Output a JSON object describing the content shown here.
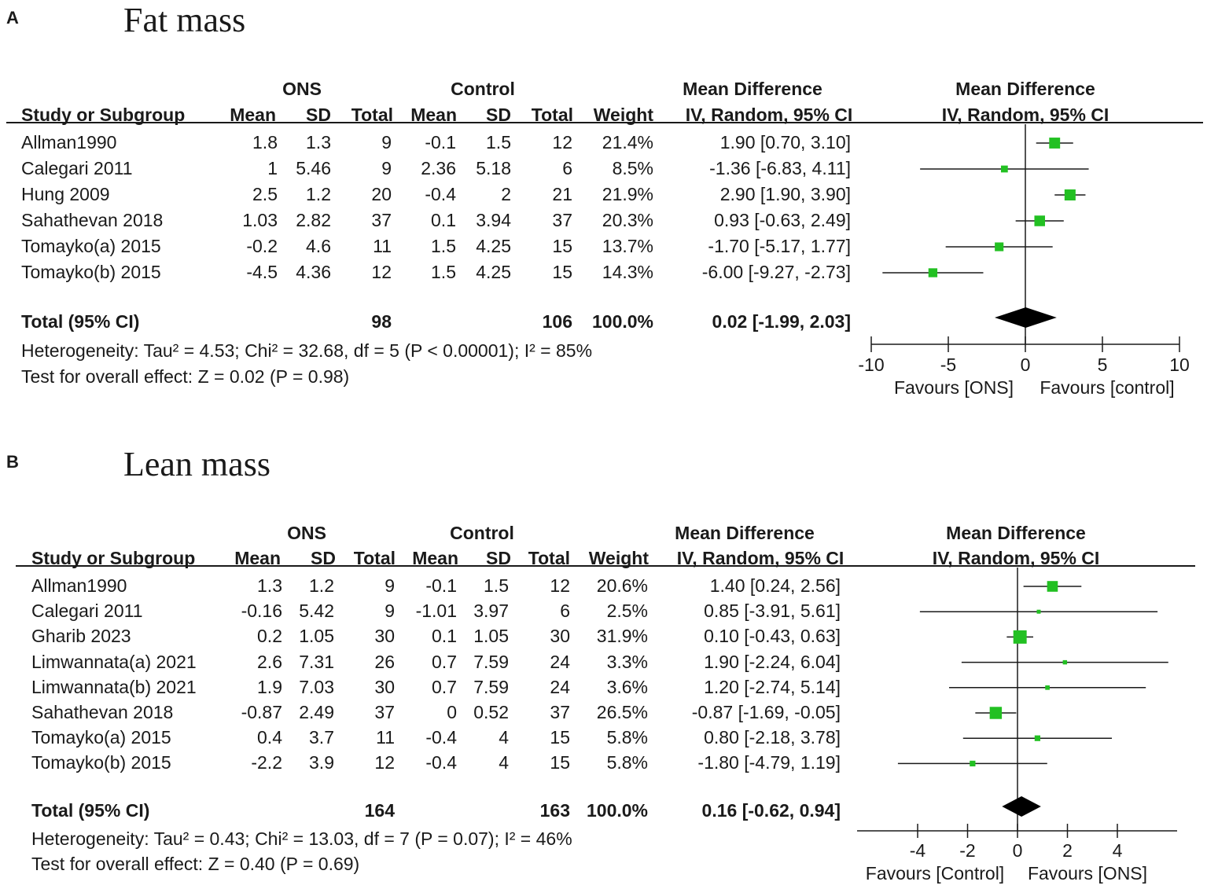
{
  "panels": [
    {
      "letter": "A",
      "title": "Fat mass",
      "group_exp": "ONS",
      "group_ctl": "Control",
      "md_header": "Mean Difference",
      "md_sub": "IV, Random, 95% CI",
      "columns": [
        "Study or Subgroup",
        "Mean",
        "SD",
        "Total",
        "Mean",
        "SD",
        "Total",
        "Weight",
        "IV, Random, 95% CI"
      ],
      "rows": [
        {
          "study": "Allman1990",
          "m1": "1.8",
          "sd1": "1.3",
          "n1": "9",
          "m2": "-0.1",
          "sd2": "1.5",
          "n2": "12",
          "weight": "21.4%",
          "ci": "1.90 [0.70, 3.10]"
        },
        {
          "study": "Calegari 2011",
          "m1": "1",
          "sd1": "5.46",
          "n1": "9",
          "m2": "2.36",
          "sd2": "5.18",
          "n2": "6",
          "weight": "8.5%",
          "ci": "-1.36 [-6.83, 4.11]"
        },
        {
          "study": "Hung 2009",
          "m1": "2.5",
          "sd1": "1.2",
          "n1": "20",
          "m2": "-0.4",
          "sd2": "2",
          "n2": "21",
          "weight": "21.9%",
          "ci": "2.90 [1.90, 3.90]"
        },
        {
          "study": "Sahathevan 2018",
          "m1": "1.03",
          "sd1": "2.82",
          "n1": "37",
          "m2": "0.1",
          "sd2": "3.94",
          "n2": "37",
          "weight": "20.3%",
          "ci": "0.93 [-0.63, 2.49]"
        },
        {
          "study": "Tomayko(a) 2015",
          "m1": "-0.2",
          "sd1": "4.6",
          "n1": "11",
          "m2": "1.5",
          "sd2": "4.25",
          "n2": "15",
          "weight": "13.7%",
          "ci": "-1.70 [-5.17, 1.77]"
        },
        {
          "study": "Tomayko(b) 2015",
          "m1": "-4.5",
          "sd1": "4.36",
          "n1": "12",
          "m2": "1.5",
          "sd2": "4.25",
          "n2": "15",
          "weight": "14.3%",
          "ci": "-6.00 [-9.27, -2.73]"
        }
      ],
      "total": {
        "label": "Total (95% CI)",
        "n1": "98",
        "n2": "106",
        "weight": "100.0%",
        "ci": "0.02 [-1.99, 2.03]"
      },
      "heterogeneity": "Heterogeneity: Tau² = 4.53; Chi² = 32.68, df = 5 (P < 0.00001); I² = 85%",
      "overall": "Test for overall effect: Z = 0.02 (P = 0.98)",
      "favours_left": "Favours [ONS]",
      "favours_right": "Favours [control]"
    },
    {
      "letter": "B",
      "title": "Lean mass",
      "group_exp": "ONS",
      "group_ctl": "Control",
      "md_header": "Mean Difference",
      "md_sub": "IV, Random, 95% CI",
      "columns": [
        "Study or Subgroup",
        "Mean",
        "SD",
        "Total",
        "Mean",
        "SD",
        "Total",
        "Weight",
        "IV, Random, 95% CI"
      ],
      "rows": [
        {
          "study": "Allman1990",
          "m1": "1.3",
          "sd1": "1.2",
          "n1": "9",
          "m2": "-0.1",
          "sd2": "1.5",
          "n2": "12",
          "weight": "20.6%",
          "ci": "1.40 [0.24, 2.56]"
        },
        {
          "study": "Calegari 2011",
          "m1": "-0.16",
          "sd1": "5.42",
          "n1": "9",
          "m2": "-1.01",
          "sd2": "3.97",
          "n2": "6",
          "weight": "2.5%",
          "ci": "0.85 [-3.91, 5.61]"
        },
        {
          "study": "Gharib 2023",
          "m1": "0.2",
          "sd1": "1.05",
          "n1": "30",
          "m2": "0.1",
          "sd2": "1.05",
          "n2": "30",
          "weight": "31.9%",
          "ci": "0.10 [-0.43, 0.63]"
        },
        {
          "study": "Limwannata(a) 2021",
          "m1": "2.6",
          "sd1": "7.31",
          "n1": "26",
          "m2": "0.7",
          "sd2": "7.59",
          "n2": "24",
          "weight": "3.3%",
          "ci": "1.90 [-2.24, 6.04]"
        },
        {
          "study": "Limwannata(b) 2021",
          "m1": "1.9",
          "sd1": "7.03",
          "n1": "30",
          "m2": "0.7",
          "sd2": "7.59",
          "n2": "24",
          "weight": "3.6%",
          "ci": "1.20 [-2.74, 5.14]"
        },
        {
          "study": "Sahathevan 2018",
          "m1": "-0.87",
          "sd1": "2.49",
          "n1": "37",
          "m2": "0",
          "sd2": "0.52",
          "n2": "37",
          "weight": "26.5%",
          "ci": "-0.87 [-1.69, -0.05]"
        },
        {
          "study": "Tomayko(a) 2015",
          "m1": "0.4",
          "sd1": "3.7",
          "n1": "11",
          "m2": "-0.4",
          "sd2": "4",
          "n2": "15",
          "weight": "5.8%",
          "ci": "0.80 [-2.18, 3.78]"
        },
        {
          "study": "Tomayko(b) 2015",
          "m1": "-2.2",
          "sd1": "3.9",
          "n1": "12",
          "m2": "-0.4",
          "sd2": "4",
          "n2": "15",
          "weight": "5.8%",
          "ci": "-1.80 [-4.79, 1.19]"
        }
      ],
      "total": {
        "label": "Total (95% CI)",
        "n1": "164",
        "n2": "163",
        "weight": "100.0%",
        "ci": "0.16 [-0.62, 0.94]"
      },
      "heterogeneity": "Heterogeneity: Tau² = 0.43; Chi² = 13.03, df = 7 (P = 0.07); I² = 46%",
      "overall": "Test for overall effect: Z = 0.40 (P = 0.69)",
      "favours_left": "Favours [Control]",
      "favours_right": "Favours [ONS]"
    }
  ],
  "colors": {
    "marker": "#22c022",
    "diamond": "#000000",
    "line": "#1a1a1a"
  },
  "chart_data": [
    {
      "type": "forest",
      "title": "Fat mass",
      "xlim": [
        -10,
        10
      ],
      "ticks": [
        -10,
        -5,
        0,
        5,
        10
      ],
      "studies": [
        {
          "name": "Allman1990",
          "md": 1.9,
          "lo": 0.7,
          "hi": 3.1,
          "weight": 21.4
        },
        {
          "name": "Calegari 2011",
          "md": -1.36,
          "lo": -6.83,
          "hi": 4.11,
          "weight": 8.5
        },
        {
          "name": "Hung 2009",
          "md": 2.9,
          "lo": 1.9,
          "hi": 3.9,
          "weight": 21.9
        },
        {
          "name": "Sahathevan 2018",
          "md": 0.93,
          "lo": -0.63,
          "hi": 2.49,
          "weight": 20.3
        },
        {
          "name": "Tomayko(a) 2015",
          "md": -1.7,
          "lo": -5.17,
          "hi": 1.77,
          "weight": 13.7
        },
        {
          "name": "Tomayko(b) 2015",
          "md": -6.0,
          "lo": -9.27,
          "hi": -2.73,
          "weight": 14.3
        }
      ],
      "pooled": {
        "md": 0.02,
        "lo": -1.99,
        "hi": 2.03
      }
    },
    {
      "type": "forest",
      "title": "Lean mass",
      "xlim": [
        -6,
        6.5
      ],
      "ticks": [
        -4,
        -2,
        0,
        2,
        4
      ],
      "studies": [
        {
          "name": "Allman1990",
          "md": 1.4,
          "lo": 0.24,
          "hi": 2.56,
          "weight": 20.6
        },
        {
          "name": "Calegari 2011",
          "md": 0.85,
          "lo": -3.91,
          "hi": 5.61,
          "weight": 2.5
        },
        {
          "name": "Gharib 2023",
          "md": 0.1,
          "lo": -0.43,
          "hi": 0.63,
          "weight": 31.9
        },
        {
          "name": "Limwannata(a) 2021",
          "md": 1.9,
          "lo": -2.24,
          "hi": 6.04,
          "weight": 3.3
        },
        {
          "name": "Limwannata(b) 2021",
          "md": 1.2,
          "lo": -2.74,
          "hi": 5.14,
          "weight": 3.6
        },
        {
          "name": "Sahathevan 2018",
          "md": -0.87,
          "lo": -1.69,
          "hi": -0.05,
          "weight": 26.5
        },
        {
          "name": "Tomayko(a) 2015",
          "md": 0.8,
          "lo": -2.18,
          "hi": 3.78,
          "weight": 5.8
        },
        {
          "name": "Tomayko(b) 2015",
          "md": -1.8,
          "lo": -4.79,
          "hi": 1.19,
          "weight": 5.8
        }
      ],
      "pooled": {
        "md": 0.16,
        "lo": -0.62,
        "hi": 0.94
      }
    }
  ]
}
